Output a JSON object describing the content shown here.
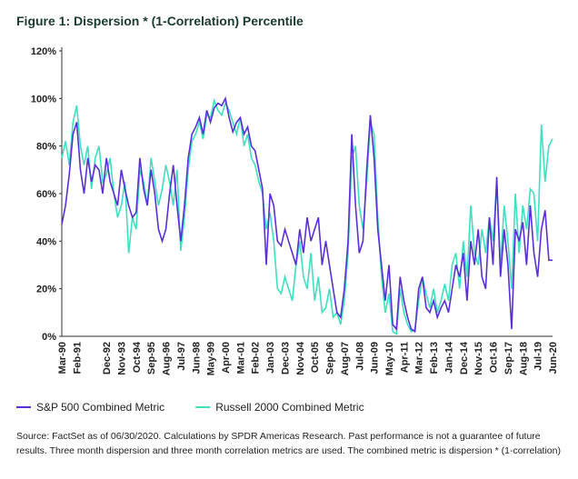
{
  "chart_data": {
    "type": "line",
    "title": "Figure 1: Dispersion * (1-Correlation) Percentile",
    "categories": [
      "Mar-90",
      null,
      null,
      null,
      "Feb-91",
      null,
      null,
      null,
      null,
      null,
      null,
      null,
      "Dec-92",
      null,
      null,
      null,
      "Nov-93",
      null,
      null,
      null,
      "Oct-94",
      null,
      null,
      null,
      "Sep-95",
      null,
      null,
      null,
      "Aug-96",
      null,
      null,
      null,
      "Jul-97",
      null,
      null,
      null,
      "Jun-98",
      null,
      null,
      null,
      "May-99",
      null,
      null,
      null,
      "Apr-00",
      null,
      null,
      null,
      "Mar-01",
      null,
      null,
      null,
      "Feb-02",
      null,
      null,
      null,
      "Jan-03",
      null,
      null,
      null,
      "Dec-03",
      null,
      null,
      null,
      "Nov-04",
      null,
      null,
      null,
      "Oct-05",
      null,
      null,
      null,
      "Sep-06",
      null,
      null,
      null,
      "Aug-07",
      null,
      null,
      null,
      "Jul-08",
      null,
      null,
      null,
      "Jun-09",
      null,
      null,
      null,
      "May-10",
      null,
      null,
      null,
      "Apr-11",
      null,
      null,
      null,
      "Mar-12",
      null,
      null,
      null,
      "Feb-13",
      null,
      null,
      null,
      "Jan-14",
      null,
      null,
      null,
      "Dec-14",
      null,
      null,
      null,
      "Nov-15",
      null,
      null,
      null,
      "Oct-16",
      null,
      null,
      null,
      "Sep-17",
      null,
      null,
      null,
      "Aug-18",
      null,
      null,
      null,
      "Jul-19",
      null,
      null,
      null,
      "Jun-20"
    ],
    "series": [
      {
        "name": "S&P 500 Combined Metric",
        "color": "#5a2fd6",
        "values": [
          47,
          55,
          68,
          85,
          90,
          70,
          60,
          75,
          65,
          72,
          70,
          60,
          75,
          65,
          60,
          55,
          70,
          62,
          55,
          50,
          52,
          75,
          62,
          55,
          70,
          60,
          45,
          40,
          45,
          60,
          72,
          55,
          40,
          55,
          75,
          85,
          88,
          92,
          85,
          95,
          90,
          96,
          98,
          97,
          100,
          92,
          86,
          90,
          92,
          85,
          88,
          80,
          78,
          70,
          62,
          30,
          60,
          55,
          40,
          38,
          45,
          40,
          35,
          30,
          45,
          35,
          50,
          40,
          45,
          50,
          30,
          40,
          30,
          20,
          10,
          8,
          20,
          40,
          85,
          55,
          35,
          40,
          70,
          93,
          75,
          45,
          30,
          15,
          30,
          5,
          3,
          25,
          15,
          8,
          3,
          2,
          20,
          25,
          12,
          10,
          15,
          8,
          12,
          15,
          10,
          20,
          30,
          25,
          35,
          15,
          40,
          30,
          45,
          25,
          20,
          50,
          30,
          67,
          25,
          45,
          30,
          3,
          45,
          40,
          48,
          30,
          55,
          35,
          25,
          45,
          53,
          32,
          32
        ]
      },
      {
        "name": "Russell 2000 Combined Metric",
        "color": "#3ee0bf",
        "values": [
          75,
          82,
          72,
          90,
          97,
          80,
          72,
          80,
          62,
          75,
          80,
          65,
          68,
          75,
          60,
          50,
          55,
          65,
          35,
          50,
          45,
          70,
          65,
          55,
          75,
          65,
          55,
          62,
          72,
          65,
          55,
          70,
          36,
          50,
          70,
          82,
          85,
          90,
          83,
          93,
          92,
          99,
          95,
          93,
          98,
          95,
          90,
          85,
          92,
          80,
          85,
          75,
          72,
          65,
          60,
          45,
          52,
          40,
          20,
          18,
          25,
          20,
          15,
          30,
          40,
          25,
          20,
          35,
          15,
          25,
          10,
          12,
          20,
          8,
          10,
          5,
          15,
          35,
          75,
          80,
          55,
          45,
          65,
          90,
          85,
          50,
          25,
          10,
          18,
          2,
          1,
          20,
          10,
          5,
          2,
          3,
          15,
          25,
          18,
          12,
          20,
          10,
          15,
          22,
          15,
          30,
          35,
          20,
          40,
          25,
          55,
          35,
          30,
          45,
          35,
          50,
          40,
          65,
          30,
          55,
          40,
          20,
          60,
          35,
          55,
          45,
          62,
          60,
          40,
          89,
          65,
          80,
          83
        ]
      }
    ],
    "ylim": [
      0,
      120
    ],
    "yticks": [
      {
        "value": 0,
        "label": "0%"
      },
      {
        "value": 20,
        "label": "20%"
      },
      {
        "value": 40,
        "label": "40%"
      },
      {
        "value": 60,
        "label": "60%"
      },
      {
        "value": 80,
        "label": "80%"
      },
      {
        "value": 100,
        "label": "100%"
      },
      {
        "value": 120,
        "label": "120%"
      }
    ],
    "grid": false,
    "legend": "bottom",
    "source": "Source: FactSet as of 06/30/2020. Calculations by SPDR Americas Research. Past performance is not a guarantee of future results. Three month dispersion and three month correlation metrics are used. The combined metric is dispersion * (1-correlation)"
  }
}
